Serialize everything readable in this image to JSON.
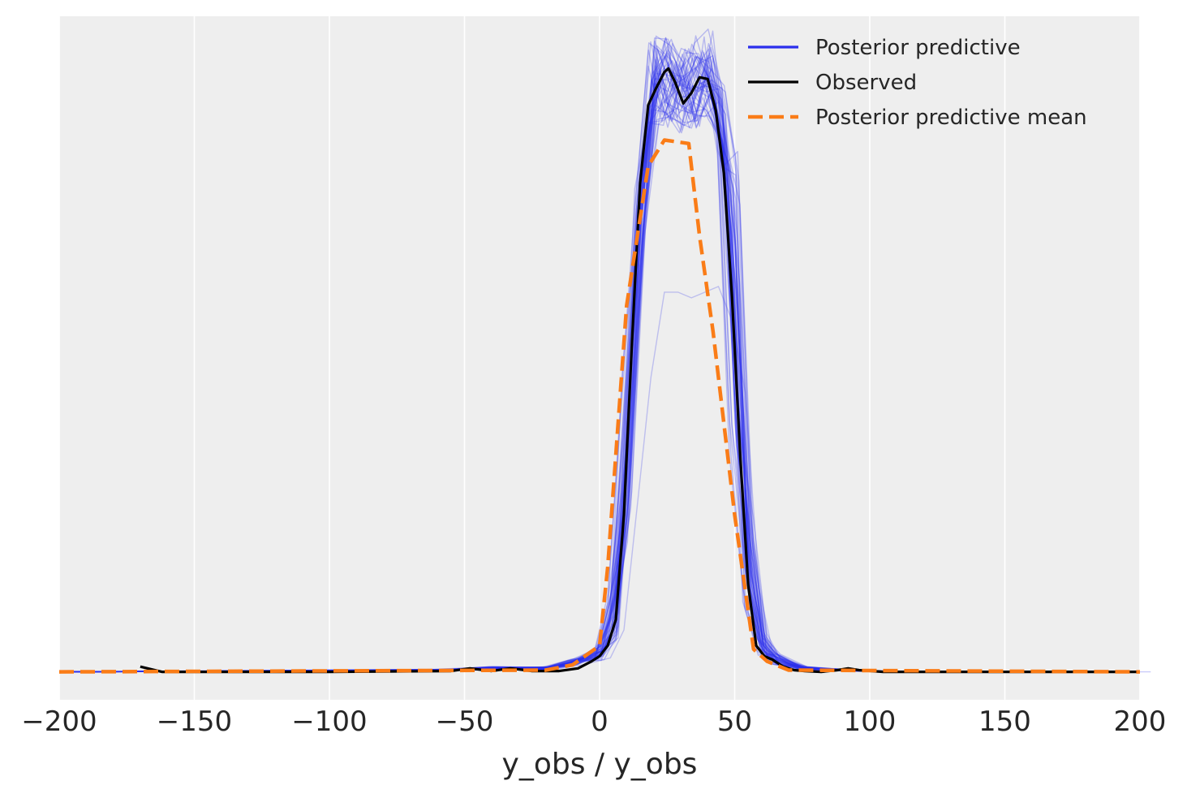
{
  "chart_data": {
    "type": "line",
    "xlabel": "y_obs / y_obs",
    "ylabel": "",
    "xlim": [
      -200,
      200
    ],
    "ylim": [
      -0.0016,
      0.0376
    ],
    "xticks": [
      -200,
      -150,
      -100,
      -50,
      0,
      50,
      100,
      150,
      200
    ],
    "xtick_labels": [
      "−200",
      "−150",
      "−100",
      "−50",
      "0",
      "50",
      "100",
      "150",
      "200"
    ],
    "y_axis_ticks_shown": false,
    "grid": "vertical",
    "legend_position": "top-right",
    "colors": {
      "background": "#eeeeee",
      "grid": "#ffffff",
      "posterior_predictive": "#2a2eec",
      "observed": "#000000",
      "posterior_predictive_mean": "#fa7c17"
    },
    "legend": [
      {
        "label": "Posterior predictive",
        "color": "#2a2eec",
        "style": "solid"
      },
      {
        "label": "Observed",
        "color": "#000000",
        "style": "solid"
      },
      {
        "label": "Posterior predictive mean",
        "color": "#fa7c17",
        "style": "dashed"
      }
    ],
    "series": [
      {
        "name": "Posterior predictive",
        "color": "#2a2eec",
        "samples": 50,
        "x": [
          -200,
          -60,
          -40,
          -20,
          -10,
          0,
          5,
          10,
          15,
          20,
          25,
          30,
          35,
          40,
          45,
          50,
          55,
          60,
          65,
          75,
          90,
          110,
          135,
          200
        ],
        "y": [
          0,
          0.0001,
          0.0002,
          0.0002,
          0.0005,
          0.001,
          0.003,
          0.012,
          0.026,
          0.0335,
          0.0335,
          0.033,
          0.0335,
          0.034,
          0.031,
          0.02,
          0.006,
          0.0015,
          0.0007,
          0.0002,
          0.0001,
          0,
          0,
          0
        ]
      },
      {
        "name": "Observed",
        "color": "#000000",
        "x": [
          -170,
          -162,
          -100,
          -55,
          -48,
          -40,
          -33,
          -25,
          -15,
          -8,
          -3,
          0,
          3,
          6,
          9,
          12,
          15,
          18,
          21,
          24,
          25.5,
          28,
          31,
          34,
          37,
          40,
          43,
          46,
          49,
          52,
          55,
          58,
          61,
          64,
          68,
          72,
          76,
          82,
          88,
          92,
          96,
          105,
          200
        ],
        "y": [
          0.0003,
          0,
          0,
          5e-05,
          0.0002,
          5e-05,
          0.0002,
          5e-05,
          5e-05,
          0.0002,
          0.0006,
          0.0009,
          0.0015,
          0.003,
          0.009,
          0.019,
          0.028,
          0.0325,
          0.0335,
          0.0344,
          0.0346,
          0.0338,
          0.0326,
          0.0332,
          0.0341,
          0.034,
          0.0322,
          0.0286,
          0.0215,
          0.0125,
          0.005,
          0.0015,
          0.0009,
          0.0007,
          0.0003,
          0.0001,
          5e-05,
          0,
          0.0001,
          0.0002,
          0.0001,
          0,
          0
        ]
      },
      {
        "name": "Posterior predictive mean",
        "color": "#fa7c17",
        "x": [
          -200,
          -20,
          -10,
          0,
          3,
          10,
          18,
          24,
          33,
          37,
          42,
          50,
          57,
          62,
          70,
          200
        ],
        "y": [
          0,
          0.0001,
          0.0004,
          0.0015,
          0.006,
          0.021,
          0.029,
          0.0305,
          0.0303,
          0.025,
          0.0195,
          0.009,
          0.0013,
          0.0006,
          0.0001,
          0
        ]
      }
    ]
  }
}
